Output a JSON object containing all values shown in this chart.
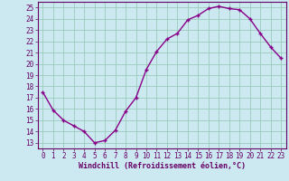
{
  "x": [
    0,
    1,
    2,
    3,
    4,
    5,
    6,
    7,
    8,
    9,
    10,
    11,
    12,
    13,
    14,
    15,
    16,
    17,
    18,
    19,
    20,
    21,
    22,
    23
  ],
  "y": [
    17.5,
    15.9,
    15.0,
    14.5,
    14.0,
    13.0,
    13.2,
    14.1,
    15.8,
    17.0,
    19.5,
    21.1,
    22.2,
    22.7,
    23.9,
    24.3,
    24.9,
    25.1,
    24.9,
    24.8,
    24.0,
    22.7,
    21.5,
    20.5
  ],
  "line_color": "#880088",
  "marker": "+",
  "marker_size": 3.5,
  "marker_lw": 1.0,
  "bg_color": "#cce8f0",
  "grid_color": "#99ccbb",
  "xlabel": "Windchill (Refroidissement éolien,°C)",
  "xlim": [
    -0.5,
    23.5
  ],
  "ylim": [
    12.5,
    25.5
  ],
  "yticks": [
    13,
    14,
    15,
    16,
    17,
    18,
    19,
    20,
    21,
    22,
    23,
    24,
    25
  ],
  "xticks": [
    0,
    1,
    2,
    3,
    4,
    5,
    6,
    7,
    8,
    9,
    10,
    11,
    12,
    13,
    14,
    15,
    16,
    17,
    18,
    19,
    20,
    21,
    22,
    23
  ],
  "label_color": "#660066",
  "tick_color": "#660066",
  "spine_color": "#660066",
  "tick_fontsize": 5.5,
  "xlabel_fontsize": 6.0,
  "linewidth": 1.0
}
